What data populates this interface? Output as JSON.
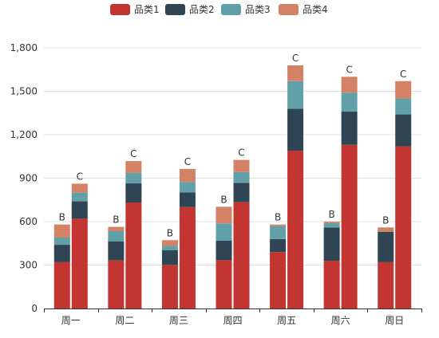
{
  "chart_data": {
    "type": "bar",
    "stacked": true,
    "categories": [
      "周一",
      "周二",
      "周三",
      "周四",
      "周五",
      "周六",
      "周日"
    ],
    "ylim": [
      0,
      1800
    ],
    "y_ticks": [
      "0",
      "300",
      "600",
      "900",
      "1,200",
      "1,500",
      "1,800"
    ],
    "y_tick_values": [
      0,
      300,
      600,
      900,
      1200,
      1500,
      1800
    ],
    "grid": true,
    "legend_position": "top",
    "stack_groups": [
      {
        "label": "B",
        "series": [
          {
            "name": "品类1",
            "color": "#c23531",
            "values": [
              320,
              332,
              301,
              334,
              390,
              330,
              320
            ]
          },
          {
            "name": "品类2",
            "color": "#2f4554",
            "values": [
              120,
              132,
              101,
              134,
              90,
              230,
              210
            ]
          },
          {
            "name": "品类3",
            "color": "#61a0a8",
            "values": [
              50,
              70,
              30,
              120,
              90,
              30,
              0
            ]
          },
          {
            "name": "品类4",
            "color": "#d48265",
            "values": [
              90,
              30,
              40,
              115,
              10,
              10,
              30
            ]
          }
        ]
      },
      {
        "label": "C",
        "series": [
          {
            "name": "品类1",
            "color": "#c23531",
            "values": [
              620,
              732,
              701,
              734,
              1090,
              1130,
              1120
            ]
          },
          {
            "name": "品类2",
            "color": "#2f4554",
            "values": [
              120,
              132,
              101,
              134,
              290,
              230,
              220
            ]
          },
          {
            "name": "品类3",
            "color": "#61a0a8",
            "values": [
              60,
              72,
              71,
              74,
              190,
              130,
              110
            ]
          },
          {
            "name": "品类4",
            "color": "#d48265",
            "values": [
              62,
              82,
              91,
              84,
              109,
              110,
              120
            ]
          }
        ]
      }
    ]
  },
  "legend": {
    "items": [
      {
        "name": "品类1",
        "color": "#c23531"
      },
      {
        "name": "品类2",
        "color": "#2f4554"
      },
      {
        "name": "品类3",
        "color": "#61a0a8"
      },
      {
        "name": "品类4",
        "color": "#d48265"
      }
    ]
  }
}
